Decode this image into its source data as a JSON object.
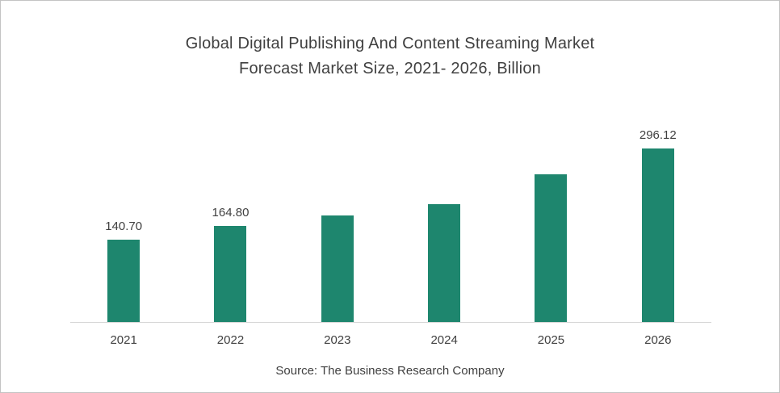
{
  "title": {
    "line1": "Global Digital Publishing And Content Streaming Market",
    "line2": "Forecast Market Size, 2021- 2026, Billion"
  },
  "source": "Source: The Business Research Company",
  "colors": {
    "bar": "#1e866e",
    "text": "#404040",
    "axis_line": "#d6d6d6",
    "border": "#c3c3c3"
  },
  "chart_data": {
    "type": "bar",
    "title": "Global Digital Publishing And Content Streaming Market Forecast Market Size, 2021- 2026, Billion",
    "categories": [
      "2021",
      "2022",
      "2023",
      "2024",
      "2025",
      "2026"
    ],
    "values": [
      140.7,
      164.8,
      182.0,
      201.5,
      252.5,
      296.12
    ],
    "data_labels": [
      "140.70",
      "164.80",
      "",
      "",
      "",
      "296.12"
    ],
    "values_estimated": [
      false,
      false,
      true,
      true,
      true,
      false
    ],
    "xlabel": "",
    "ylabel": "",
    "unit": "Billion",
    "ylim": [
      0,
      320
    ],
    "grid": false,
    "legend": false,
    "bar_color": "#1e866e"
  }
}
